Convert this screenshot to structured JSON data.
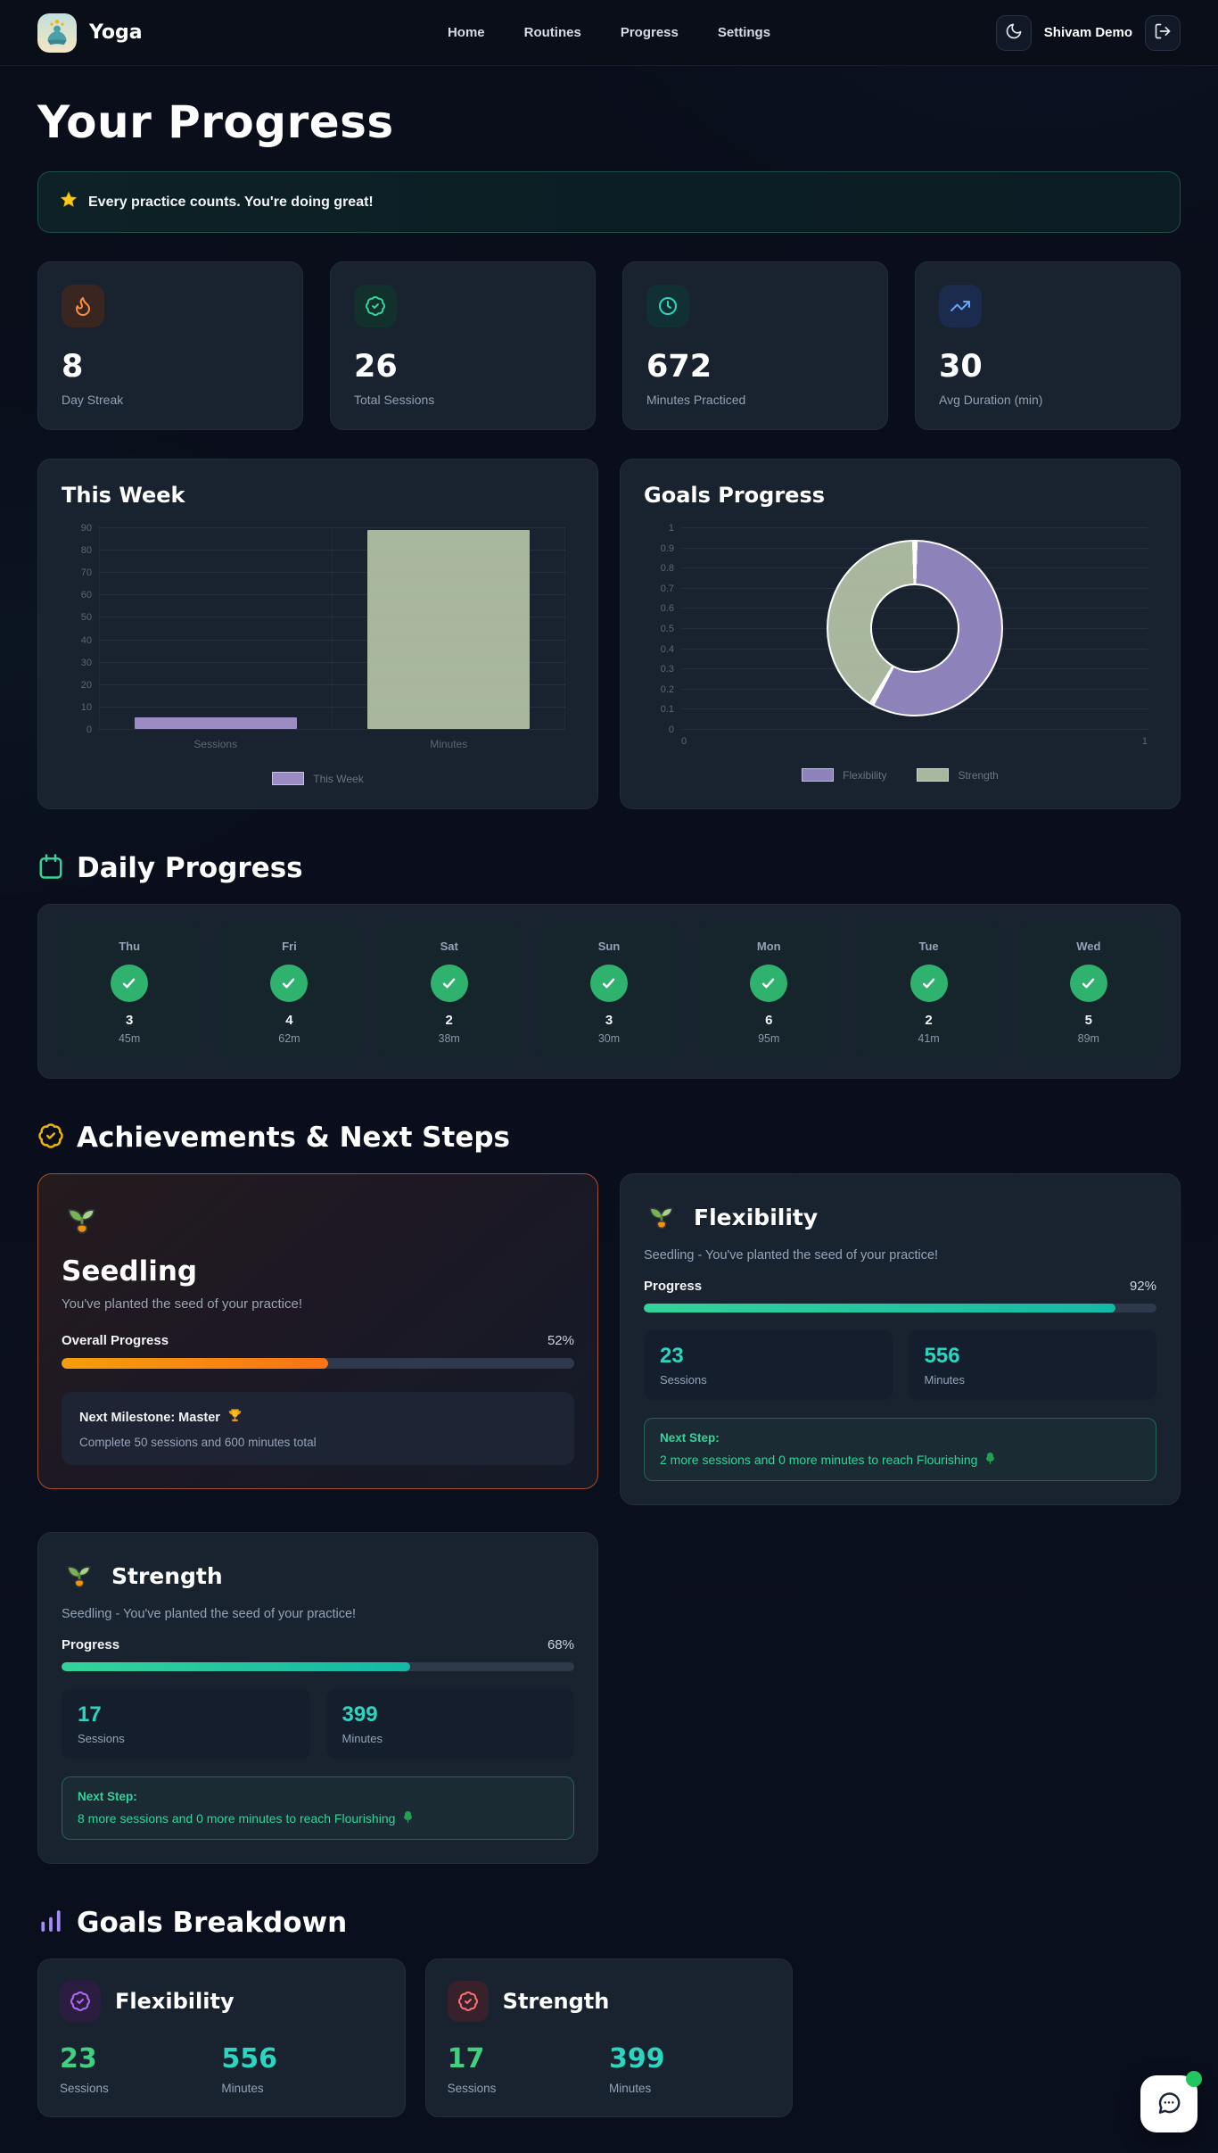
{
  "nav": {
    "brand": "Yoga",
    "links": [
      "Home",
      "Routines",
      "Progress",
      "Settings"
    ],
    "user": "Shivam Demo"
  },
  "page_title": "Your Progress",
  "banner": {
    "icon": "star",
    "text": "Every practice counts. You're doing great!"
  },
  "stats": [
    {
      "value": "8",
      "label": "Day Streak",
      "icon": "flame",
      "icon_color": "#fb923c",
      "icon_bg": "#3a2620"
    },
    {
      "value": "26",
      "label": "Total Sessions",
      "icon": "badge-check",
      "icon_color": "#34d399",
      "icon_bg": "#12312c"
    },
    {
      "value": "672",
      "label": "Minutes Practiced",
      "icon": "clock",
      "icon_color": "#2dd4bf",
      "icon_bg": "#113034"
    },
    {
      "value": "30",
      "label": "Avg Duration (min)",
      "icon": "trending-up",
      "icon_color": "#60a5fa",
      "icon_bg": "#1b2b4e"
    }
  ],
  "chart_data": [
    {
      "type": "bar",
      "title": "This Week",
      "categories": [
        "Sessions",
        "Minutes"
      ],
      "values": [
        5,
        89
      ],
      "ylim": [
        0,
        90
      ],
      "yticks": [
        90,
        80,
        70,
        60,
        50,
        40,
        30,
        20,
        10,
        0
      ],
      "bar_colors": [
        "#9a8cc2",
        "#a9b79e"
      ],
      "grid": true,
      "legend_position": "bottom",
      "legend": [
        {
          "label": "This Week",
          "color": "#9a8cc2"
        }
      ]
    },
    {
      "type": "doughnut",
      "title": "Goals Progress",
      "labels": [
        "Flexibility",
        "Strength"
      ],
      "values": [
        556,
        399
      ],
      "colors": [
        "#8d82ba",
        "#a9b79e"
      ],
      "yticks": [
        1,
        0.9,
        0.8,
        0.7,
        0.6,
        0.5,
        0.4,
        0.3,
        0.2,
        0.1,
        0
      ],
      "xticks": [
        0,
        1
      ],
      "legend_position": "bottom",
      "legend": [
        {
          "label": "Flexibility",
          "color": "#8d82ba"
        },
        {
          "label": "Strength",
          "color": "#a9b79e"
        }
      ]
    }
  ],
  "daily": {
    "title": "Daily Progress",
    "days": [
      {
        "day": "Thu",
        "sessions": "3",
        "minutes": "45m"
      },
      {
        "day": "Fri",
        "sessions": "4",
        "minutes": "62m"
      },
      {
        "day": "Sat",
        "sessions": "2",
        "minutes": "38m"
      },
      {
        "day": "Sun",
        "sessions": "3",
        "minutes": "30m"
      },
      {
        "day": "Mon",
        "sessions": "6",
        "minutes": "95m"
      },
      {
        "day": "Tue",
        "sessions": "2",
        "minutes": "41m"
      },
      {
        "day": "Wed",
        "sessions": "5",
        "minutes": "89m"
      }
    ]
  },
  "achievements": {
    "title": "Achievements & Next Steps",
    "overall": {
      "title": "Seedling",
      "desc": "You've planted the seed of your practice!",
      "progress_label": "Overall Progress",
      "percent": "52%",
      "pct": 52,
      "milestone_title": "Next Milestone: Master",
      "milestone_desc": "Complete 50 sessions and 600 minutes total"
    },
    "goals": [
      {
        "title": "Flexibility",
        "subtitle": "Seedling - You've planted the seed of your practice!",
        "progress_label": "Progress",
        "percent": "92%",
        "pct": 92,
        "sessions": "23",
        "sessions_label": "Sessions",
        "minutes": "556",
        "minutes_label": "Minutes",
        "next_label": "Next Step:",
        "next_text": "2 more sessions and 0 more minutes to reach Flourishing"
      },
      {
        "title": "Strength",
        "subtitle": "Seedling - You've planted the seed of your practice!",
        "progress_label": "Progress",
        "percent": "68%",
        "pct": 68,
        "sessions": "17",
        "sessions_label": "Sessions",
        "minutes": "399",
        "minutes_label": "Minutes",
        "next_label": "Next Step:",
        "next_text": "8 more sessions and 0 more minutes to reach Flourishing"
      }
    ]
  },
  "breakdown": {
    "title": "Goals Breakdown",
    "items": [
      {
        "title": "Flexibility",
        "sessions": "23",
        "sessions_label": "Sessions",
        "minutes": "556",
        "minutes_label": "Minutes",
        "badge_color": "#b069f5",
        "badge_bg": "#2a1d40"
      },
      {
        "title": "Strength",
        "sessions": "17",
        "sessions_label": "Sessions",
        "minutes": "399",
        "minutes_label": "Minutes",
        "badge_color": "#f87171",
        "badge_bg": "#38212b"
      }
    ]
  },
  "theme": {
    "accent_green": "#34d399",
    "accent_teal": "#2dd4bf",
    "accent_orange": "#f97316",
    "accent_purple": "#a78bfa",
    "accent_yellow": "#eab308",
    "accent_red": "#f87171",
    "card_bg": "#19222f",
    "page_bg": "#0a0e1c"
  }
}
